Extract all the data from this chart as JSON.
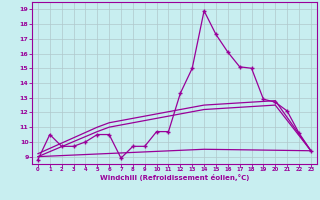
{
  "xlabel": "Windchill (Refroidissement éolien,°C)",
  "background_color": "#c8eef0",
  "line_color": "#990099",
  "xlim": [
    -0.5,
    23.5
  ],
  "ylim": [
    8.5,
    19.5
  ],
  "xticks": [
    0,
    1,
    2,
    3,
    4,
    5,
    6,
    7,
    8,
    9,
    10,
    11,
    12,
    13,
    14,
    15,
    16,
    17,
    18,
    19,
    20,
    21,
    22,
    23
  ],
  "yticks": [
    9,
    10,
    11,
    12,
    13,
    14,
    15,
    16,
    17,
    18,
    19
  ],
  "grid_color": "#b0c8cc",
  "series1_x": [
    0,
    1,
    2,
    3,
    4,
    5,
    6,
    7,
    8,
    9,
    10,
    11,
    12,
    13,
    14,
    15,
    16,
    17,
    18,
    19,
    20,
    21,
    22,
    23
  ],
  "series1_y": [
    8.8,
    10.5,
    9.7,
    9.7,
    10.0,
    10.5,
    10.5,
    8.9,
    9.7,
    9.7,
    10.7,
    10.7,
    13.3,
    15.0,
    18.9,
    17.3,
    16.1,
    15.1,
    15.0,
    12.9,
    12.7,
    12.1,
    10.6,
    9.4
  ],
  "series2_x": [
    0,
    14,
    23
  ],
  "series2_y": [
    9.0,
    9.5,
    9.4
  ],
  "series3_x": [
    0,
    5,
    6,
    14,
    20,
    23
  ],
  "series3_y": [
    9.2,
    11.0,
    11.3,
    12.5,
    12.8,
    9.4
  ],
  "series4_x": [
    0,
    5,
    6,
    14,
    20,
    23
  ],
  "series4_y": [
    9.0,
    10.7,
    11.0,
    12.2,
    12.5,
    9.4
  ]
}
